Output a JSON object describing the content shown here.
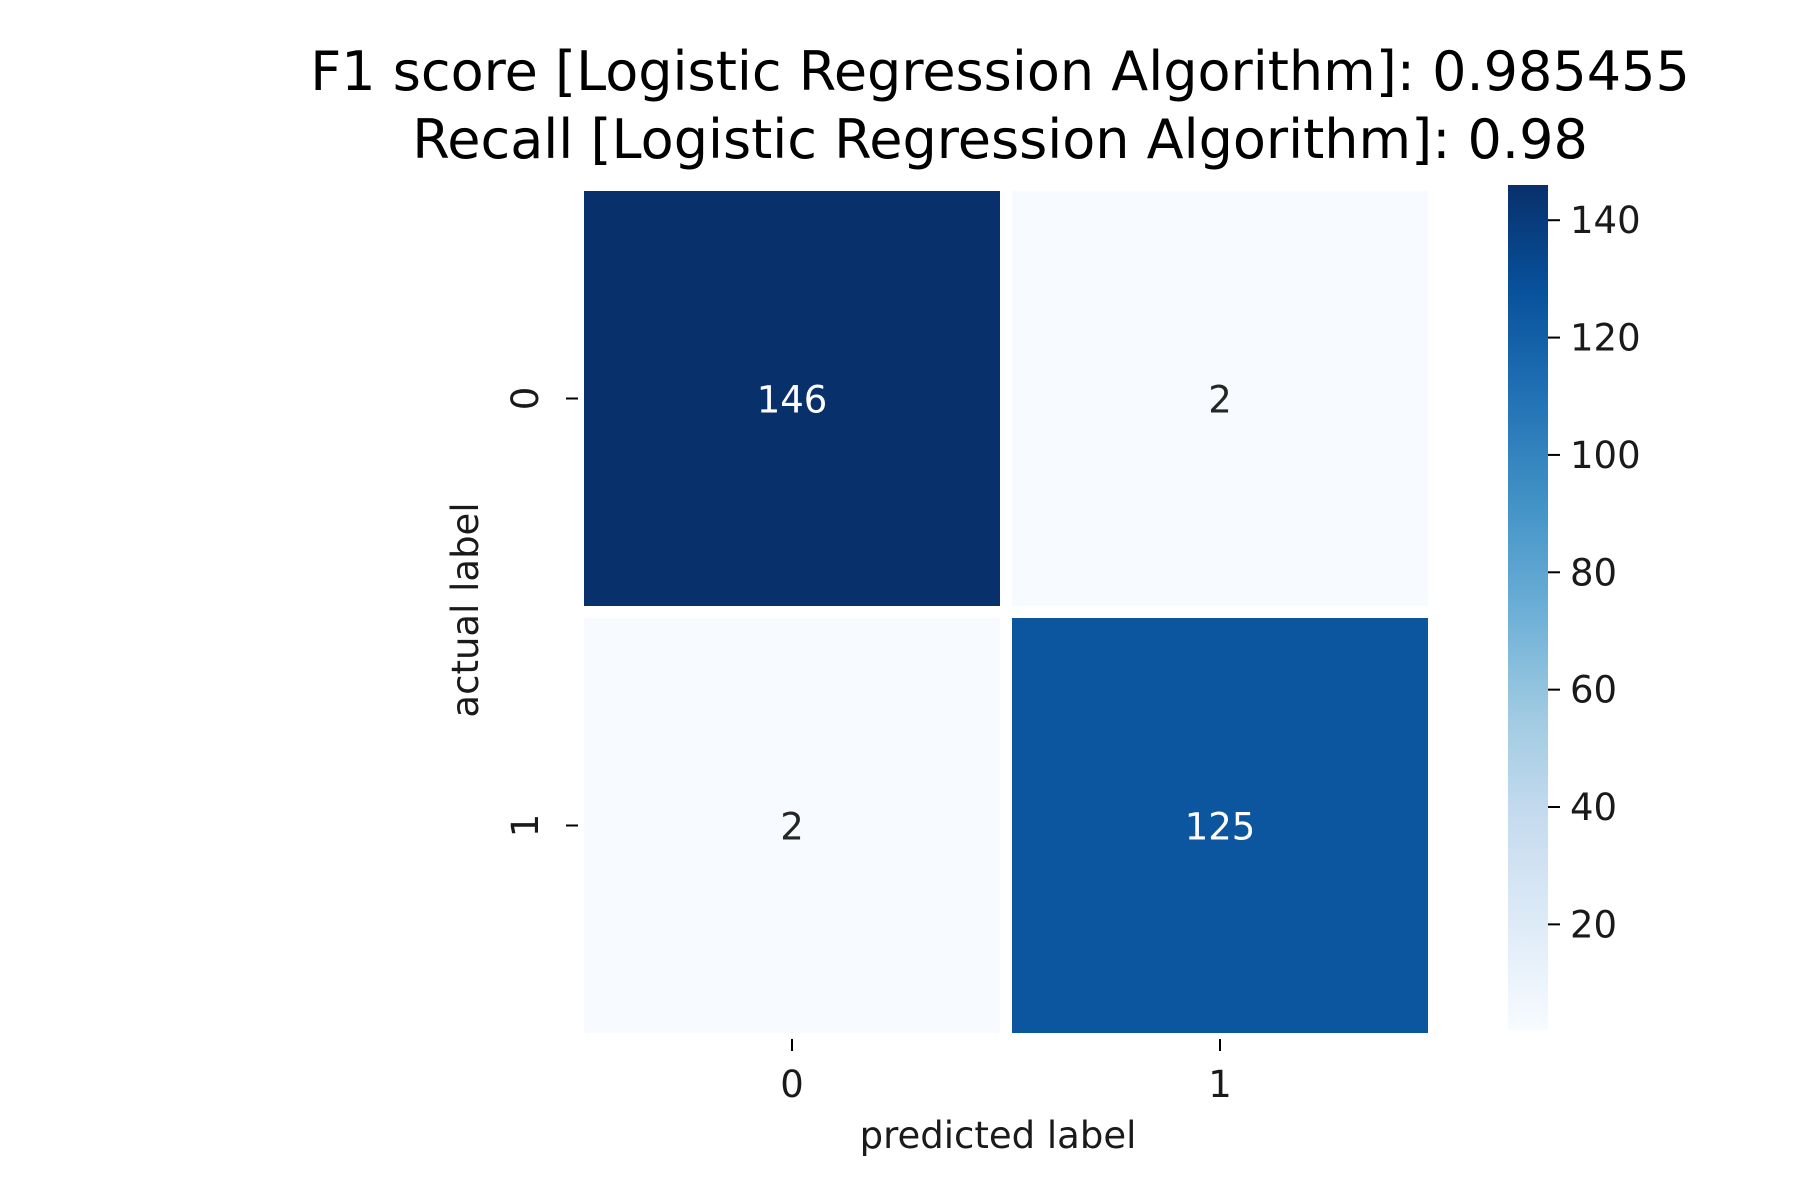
{
  "chart_data": {
    "type": "heatmap",
    "title_lines": [
      "F1 score [Logistic Regression Algorithm]:  0.985455",
      "Recall [Logistic Regression Algorithm]: 0.98"
    ],
    "xlabel": "predicted label",
    "ylabel": "actual label",
    "x_categories": [
      "0",
      "1"
    ],
    "y_categories": [
      "0",
      "1"
    ],
    "matrix": [
      [
        146,
        2
      ],
      [
        2,
        125
      ]
    ],
    "colormap": "Blues",
    "colorbar": {
      "range": [
        2,
        146
      ],
      "ticks": [
        "20",
        "40",
        "60",
        "80",
        "100",
        "120",
        "140"
      ]
    }
  }
}
